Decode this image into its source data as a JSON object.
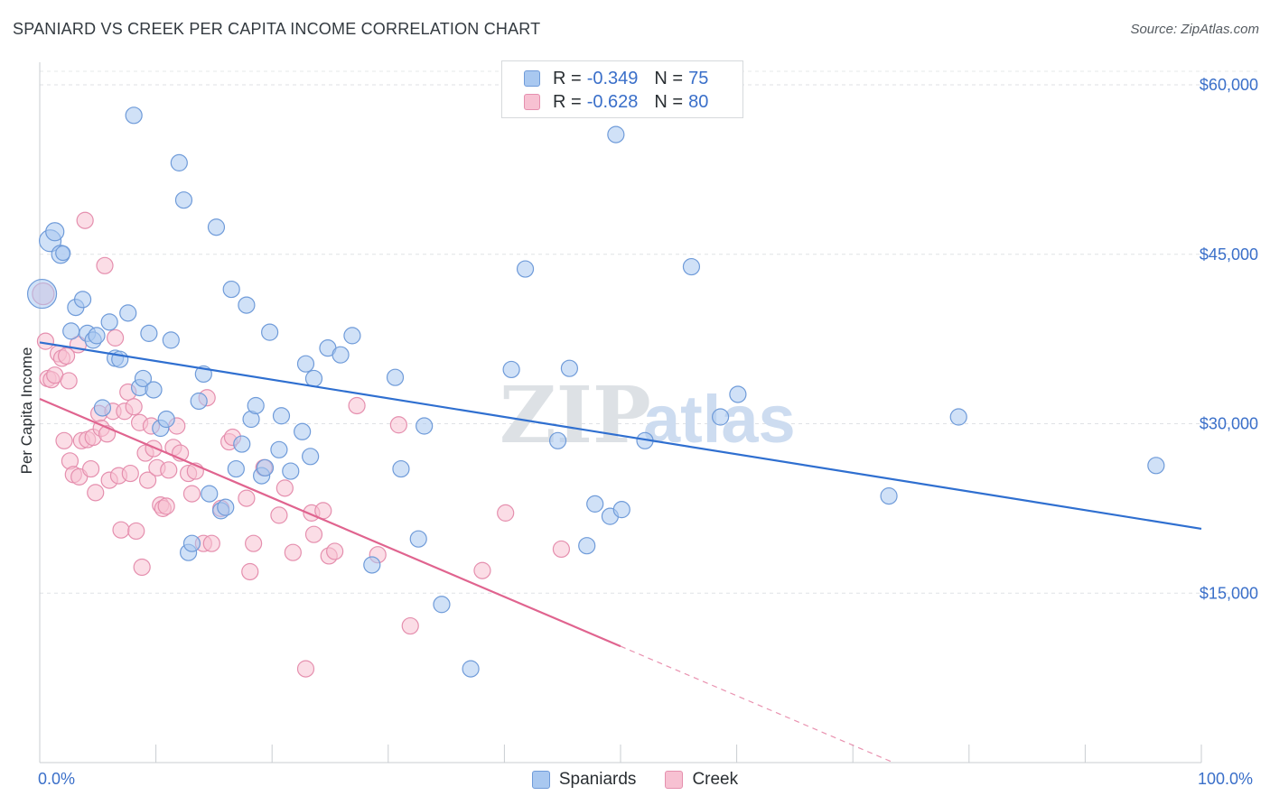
{
  "header": {
    "title": "SPANIARD VS CREEK PER CAPITA INCOME CORRELATION CHART",
    "source": "Source: ZipAtlas.com"
  },
  "watermark": {
    "part1": "ZIP",
    "part2": "atlas"
  },
  "legend": {
    "r_label": "R =",
    "n_label": "N =",
    "rows": [
      {
        "r": "-0.349",
        "n": "75",
        "color": "#a9c8f0",
        "stroke": "#6f9bd9"
      },
      {
        "r": "-0.628",
        "n": "80",
        "color": "#f7c1d2",
        "stroke": "#e58fae"
      }
    ]
  },
  "bottom_legend": [
    {
      "label": "Spaniards",
      "color": "#a9c8f0",
      "stroke": "#6f9bd9"
    },
    {
      "label": "Creek",
      "color": "#f7c1d2",
      "stroke": "#e58fae"
    }
  ],
  "chart_data": {
    "type": "scatter",
    "xlabel": "",
    "ylabel": "Per Capita Income",
    "xlim": [
      0,
      100
    ],
    "ylim": [
      0,
      62000
    ],
    "x_tick_labels": [
      "0.0%",
      "100.0%"
    ],
    "y_ticks": [
      15000,
      30000,
      45000,
      60000
    ],
    "y_tick_labels": [
      "$15,000",
      "$30,000",
      "$45,000",
      "$60,000"
    ],
    "grid": true,
    "legend_position": "top-center",
    "series": [
      {
        "name": "Spaniards",
        "color": "#6f9bd9",
        "fill": "#a9c8f0",
        "trend_color": "#2f6fd0",
        "trend": [
          [
            0,
            37200
          ],
          [
            100,
            20700
          ]
        ],
        "points": [
          [
            0.2,
            41500,
            16
          ],
          [
            0.9,
            46200,
            12
          ],
          [
            1.3,
            47000,
            10
          ],
          [
            1.8,
            45000,
            10
          ],
          [
            2.0,
            45100,
            8
          ],
          [
            2.7,
            38200,
            9
          ],
          [
            3.1,
            40300,
            9
          ],
          [
            3.7,
            41000,
            9
          ],
          [
            4.1,
            38000,
            9
          ],
          [
            4.6,
            37400,
            9
          ],
          [
            4.9,
            37800,
            9
          ],
          [
            5.4,
            31400,
            9
          ],
          [
            6.0,
            39000,
            9
          ],
          [
            6.5,
            35800,
            9
          ],
          [
            6.9,
            35700,
            9
          ],
          [
            7.6,
            39800,
            9
          ],
          [
            8.1,
            57300,
            9
          ],
          [
            8.6,
            33200,
            9
          ],
          [
            8.9,
            34000,
            9
          ],
          [
            9.4,
            38000,
            9
          ],
          [
            9.8,
            33000,
            9
          ],
          [
            10.4,
            29600,
            9
          ],
          [
            10.9,
            30400,
            9
          ],
          [
            11.3,
            37400,
            9
          ],
          [
            12.0,
            53100,
            9
          ],
          [
            12.4,
            49800,
            9
          ],
          [
            12.8,
            18600,
            9
          ],
          [
            13.1,
            19400,
            9
          ],
          [
            13.7,
            32000,
            9
          ],
          [
            14.1,
            34400,
            9
          ],
          [
            14.6,
            23800,
            9
          ],
          [
            15.2,
            47400,
            9
          ],
          [
            15.6,
            22300,
            9
          ],
          [
            16.0,
            22600,
            9
          ],
          [
            16.5,
            41900,
            9
          ],
          [
            16.9,
            26000,
            9
          ],
          [
            17.4,
            28200,
            9
          ],
          [
            17.8,
            40500,
            9
          ],
          [
            18.2,
            30400,
            9
          ],
          [
            18.6,
            31600,
            9
          ],
          [
            19.1,
            25400,
            9
          ],
          [
            19.4,
            26100,
            9
          ],
          [
            19.8,
            38100,
            9
          ],
          [
            20.6,
            27700,
            9
          ],
          [
            20.8,
            30700,
            9
          ],
          [
            21.6,
            25800,
            9
          ],
          [
            22.6,
            29300,
            9
          ],
          [
            22.9,
            35300,
            9
          ],
          [
            23.3,
            27100,
            9
          ],
          [
            23.6,
            34000,
            9
          ],
          [
            24.8,
            36700,
            9
          ],
          [
            25.9,
            36100,
            9
          ],
          [
            26.9,
            37800,
            9
          ],
          [
            28.6,
            17500,
            9
          ],
          [
            30.6,
            34100,
            9
          ],
          [
            31.1,
            26000,
            9
          ],
          [
            32.6,
            19800,
            9
          ],
          [
            33.1,
            29800,
            9
          ],
          [
            34.6,
            14000,
            9
          ],
          [
            37.1,
            8300,
            9
          ],
          [
            40.6,
            34800,
            9
          ],
          [
            41.8,
            43700,
            9
          ],
          [
            44.6,
            28500,
            9
          ],
          [
            45.6,
            34900,
            9
          ],
          [
            47.1,
            19200,
            9
          ],
          [
            47.8,
            22900,
            9
          ],
          [
            49.1,
            21800,
            9
          ],
          [
            49.6,
            55600,
            9
          ],
          [
            50.1,
            22400,
            9
          ],
          [
            52.1,
            28500,
            9
          ],
          [
            56.1,
            43900,
            9
          ],
          [
            58.6,
            30600,
            9
          ],
          [
            60.1,
            32600,
            9
          ],
          [
            73.1,
            23600,
            9
          ],
          [
            79.1,
            30600,
            9
          ],
          [
            96.1,
            26300,
            9
          ]
        ]
      },
      {
        "name": "Creek",
        "color": "#e58fae",
        "fill": "#f7c1d2",
        "trend_color": "#e0648f",
        "trend": [
          [
            0,
            32200
          ],
          [
            50,
            10300
          ]
        ],
        "trend_dashed": [
          [
            50,
            10300
          ],
          [
            73.5,
            0
          ]
        ],
        "points": [
          [
            0.3,
            41500,
            12
          ],
          [
            0.5,
            37300,
            9
          ],
          [
            0.7,
            34000,
            9
          ],
          [
            1.0,
            33900,
            9
          ],
          [
            1.3,
            34300,
            9
          ],
          [
            1.6,
            36200,
            9
          ],
          [
            1.9,
            35800,
            9
          ],
          [
            2.1,
            28500,
            9
          ],
          [
            2.3,
            36000,
            9
          ],
          [
            2.5,
            33800,
            9
          ],
          [
            2.6,
            26700,
            9
          ],
          [
            2.9,
            25500,
            9
          ],
          [
            3.3,
            37000,
            9
          ],
          [
            3.4,
            25300,
            9
          ],
          [
            3.6,
            28500,
            9
          ],
          [
            3.9,
            48000,
            9
          ],
          [
            4.1,
            28600,
            9
          ],
          [
            4.4,
            26000,
            9
          ],
          [
            4.6,
            28800,
            9
          ],
          [
            4.8,
            23900,
            9
          ],
          [
            5.1,
            30900,
            9
          ],
          [
            5.3,
            29600,
            9
          ],
          [
            5.6,
            44000,
            9
          ],
          [
            5.8,
            29100,
            9
          ],
          [
            6.0,
            25000,
            9
          ],
          [
            6.3,
            31100,
            9
          ],
          [
            6.5,
            37600,
            9
          ],
          [
            6.8,
            25400,
            9
          ],
          [
            7.0,
            20600,
            9
          ],
          [
            7.3,
            31100,
            9
          ],
          [
            7.6,
            32800,
            9
          ],
          [
            7.8,
            25600,
            9
          ],
          [
            8.1,
            31500,
            9
          ],
          [
            8.3,
            20500,
            9
          ],
          [
            8.6,
            30100,
            9
          ],
          [
            8.8,
            17300,
            9
          ],
          [
            9.1,
            27400,
            9
          ],
          [
            9.3,
            25000,
            9
          ],
          [
            9.6,
            29800,
            9
          ],
          [
            9.8,
            27800,
            9
          ],
          [
            10.1,
            26100,
            9
          ],
          [
            10.4,
            22800,
            9
          ],
          [
            10.6,
            22500,
            9
          ],
          [
            10.9,
            22700,
            9
          ],
          [
            11.1,
            25900,
            9
          ],
          [
            11.5,
            27900,
            9
          ],
          [
            11.8,
            29800,
            9
          ],
          [
            12.1,
            27400,
            9
          ],
          [
            12.8,
            25600,
            9
          ],
          [
            13.1,
            23800,
            9
          ],
          [
            13.4,
            25800,
            9
          ],
          [
            14.1,
            19400,
            9
          ],
          [
            14.4,
            32300,
            9
          ],
          [
            14.8,
            19400,
            9
          ],
          [
            15.6,
            22500,
            9
          ],
          [
            16.3,
            28400,
            9
          ],
          [
            16.6,
            28800,
            9
          ],
          [
            17.8,
            23400,
            9
          ],
          [
            18.1,
            16900,
            9
          ],
          [
            18.4,
            19400,
            9
          ],
          [
            19.3,
            26100,
            9
          ],
          [
            20.6,
            21900,
            9
          ],
          [
            21.1,
            24300,
            9
          ],
          [
            21.8,
            18600,
            9
          ],
          [
            22.9,
            8300,
            9
          ],
          [
            23.4,
            22100,
            9
          ],
          [
            23.6,
            20200,
            9
          ],
          [
            24.4,
            22300,
            9
          ],
          [
            24.9,
            18300,
            9
          ],
          [
            25.4,
            18700,
            9
          ],
          [
            27.3,
            31600,
            9
          ],
          [
            29.1,
            18400,
            9
          ],
          [
            30.9,
            29900,
            9
          ],
          [
            31.9,
            12100,
            9
          ],
          [
            38.1,
            17000,
            9
          ],
          [
            40.1,
            22100,
            9
          ],
          [
            44.9,
            18900,
            9
          ]
        ]
      }
    ]
  }
}
